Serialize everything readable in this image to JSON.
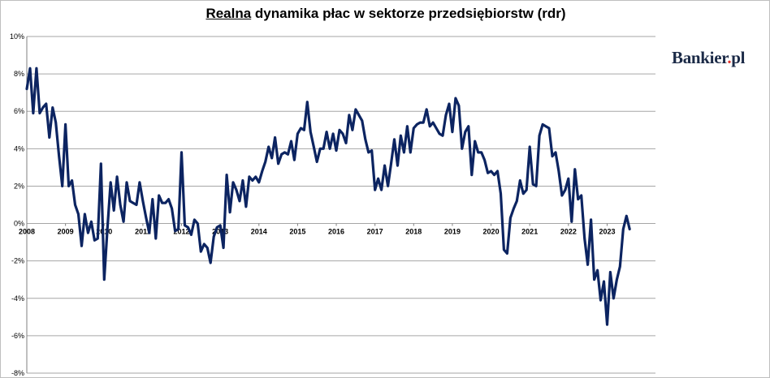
{
  "title": {
    "emphasis": "Realna",
    "rest": " dynamika płac w sektorze przedsiębiorstw (rdr)"
  },
  "logo": {
    "main": "Bankier",
    "dot": ".",
    "suffix": "pl"
  },
  "colors": {
    "series": "#0c2461",
    "grid": "#a6a6a6",
    "logo_dot": "#e2342b"
  },
  "chart_data": {
    "type": "line",
    "title": "Realna dynamika płac w sektorze przedsiębiorstw (rdr)",
    "xlabel": "",
    "ylabel": "",
    "ylim": [
      -8,
      10
    ],
    "y_ticks": [
      "-8%",
      "-6%",
      "-4%",
      "-2%",
      "0%",
      "2%",
      "4%",
      "6%",
      "8%",
      "10%"
    ],
    "x_ticks": [
      "2008",
      "2009",
      "2010",
      "2011",
      "2012",
      "2013",
      "2014",
      "2015",
      "2016",
      "2017",
      "2018",
      "2019",
      "2020",
      "2021",
      "2022",
      "2023"
    ],
    "grid": true,
    "x_start": "2008-01",
    "frequency": "monthly",
    "series": [
      {
        "values": [
          7.2,
          8.3,
          5.9,
          8.3,
          5.9,
          6.2,
          6.4,
          4.6,
          6.2,
          5.4,
          3.6,
          2.0,
          5.3,
          2.0,
          2.3,
          1.0,
          0.5,
          -1.2,
          0.5,
          -0.5,
          0.1,
          -0.9,
          -0.8,
          3.2,
          -3.0,
          -0.3,
          2.2,
          0.7,
          2.5,
          1.0,
          0.1,
          2.2,
          1.2,
          1.1,
          1.0,
          2.2,
          1.2,
          0.3,
          -0.5,
          1.3,
          -0.8,
          1.5,
          1.1,
          1.1,
          1.3,
          0.8,
          -0.4,
          -0.3,
          3.8,
          -0.1,
          -0.2,
          -0.6,
          0.2,
          0.0,
          -1.5,
          -1.1,
          -1.3,
          -2.1,
          -0.7,
          -0.2,
          -0.1,
          -1.3,
          2.6,
          0.6,
          2.2,
          1.8,
          1.2,
          2.3,
          0.9,
          2.5,
          2.3,
          2.5,
          2.2,
          2.8,
          3.3,
          4.1,
          3.5,
          4.6,
          3.2,
          3.7,
          3.8,
          3.7,
          4.4,
          3.4,
          4.8,
          5.1,
          5.0,
          6.5,
          4.9,
          4.1,
          3.3,
          4.0,
          4.0,
          4.9,
          4.0,
          4.8,
          3.9,
          5.0,
          4.8,
          4.3,
          5.8,
          5.0,
          6.1,
          5.8,
          5.5,
          4.5,
          3.8,
          3.9,
          1.8,
          2.4,
          1.8,
          3.1,
          2.0,
          3.2,
          4.5,
          3.1,
          4.7,
          3.8,
          5.2,
          3.8,
          5.1,
          5.3,
          5.4,
          5.4,
          6.1,
          5.2,
          5.4,
          5.1,
          4.8,
          4.7,
          5.8,
          6.4,
          4.9,
          6.7,
          6.3,
          4.0,
          4.9,
          5.2,
          2.6,
          4.4,
          3.8,
          3.8,
          3.4,
          2.7,
          2.8,
          2.6,
          2.8,
          1.6,
          -1.4,
          -1.6,
          0.3,
          0.8,
          1.2,
          2.3,
          1.6,
          1.8,
          4.1,
          2.1,
          2.0,
          4.7,
          5.3,
          5.2,
          5.1,
          3.6,
          3.8,
          2.8,
          1.5,
          1.8,
          2.4,
          0.1,
          2.9,
          1.3,
          1.5,
          -0.8,
          -2.2,
          0.2,
          -3.0,
          -2.5,
          -4.1,
          -3.1,
          -5.4,
          -2.6,
          -4.0,
          -3.0,
          -2.3,
          -0.3,
          0.4,
          -0.3
        ]
      }
    ]
  }
}
